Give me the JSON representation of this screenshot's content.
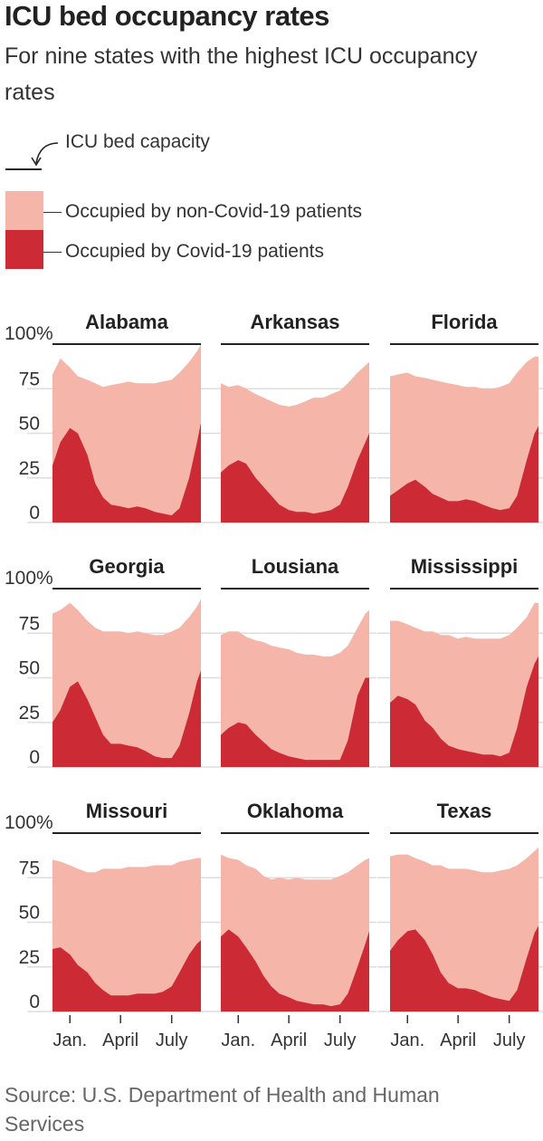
{
  "header": {
    "title": "ICU bed occupancy rates",
    "subtitle": "For nine states with the highest ICU occupancy rates"
  },
  "legend": {
    "capacity": "ICU bed capacity",
    "non_covid": "Occupied by non-Covid-19 patients",
    "covid": "Occupied by Covid-19 patients"
  },
  "colors": {
    "non_covid": "#f5b5a9",
    "covid": "#cc2b36",
    "capacity": "#222222",
    "grid": "#dddddd"
  },
  "source": "Source: U.S. Department of Health and Human Services",
  "chart_data": {
    "type": "area",
    "stacked": false,
    "layout": "small-multiples 3x3",
    "y_ticks": [
      "100%",
      "75",
      "50",
      "25",
      "0"
    ],
    "ylim": [
      0,
      100
    ],
    "x_ticks": [
      "Jan.",
      "April",
      "July"
    ],
    "grid": true,
    "x": [
      "2020-12-01",
      "2020-12-15",
      "2021-01-01",
      "2021-01-15",
      "2021-02-01",
      "2021-02-15",
      "2021-03-01",
      "2021-03-15",
      "2021-04-01",
      "2021-04-15",
      "2021-05-01",
      "2021-05-15",
      "2021-06-01",
      "2021-06-15",
      "2021-07-01",
      "2021-07-15",
      "2021-08-01",
      "2021-08-15",
      "2021-08-22"
    ],
    "panels": [
      {
        "state": "Alabama",
        "total": [
          83,
          92,
          87,
          82,
          80,
          78,
          76,
          77,
          78,
          79,
          78,
          78,
          78,
          79,
          80,
          84,
          90,
          96,
          100
        ],
        "covid": [
          32,
          45,
          53,
          50,
          38,
          22,
          14,
          10,
          9,
          8,
          9,
          8,
          6,
          5,
          4,
          8,
          25,
          45,
          56
        ]
      },
      {
        "state": "Arkansas",
        "total": [
          78,
          76,
          77,
          75,
          72,
          70,
          68,
          66,
          65,
          66,
          68,
          70,
          70,
          72,
          74,
          78,
          84,
          88,
          90
        ],
        "covid": [
          28,
          32,
          35,
          33,
          25,
          20,
          15,
          10,
          7,
          6,
          6,
          5,
          6,
          7,
          10,
          20,
          35,
          45,
          50
        ]
      },
      {
        "state": "Florida",
        "total": [
          82,
          83,
          84,
          82,
          81,
          80,
          79,
          78,
          77,
          76,
          76,
          75,
          75,
          76,
          78,
          84,
          90,
          93,
          93
        ],
        "covid": [
          15,
          18,
          22,
          24,
          20,
          16,
          14,
          12,
          12,
          13,
          12,
          10,
          8,
          7,
          8,
          15,
          35,
          50,
          54
        ]
      },
      {
        "state": "Georgia",
        "total": [
          86,
          88,
          92,
          88,
          82,
          78,
          76,
          76,
          76,
          75,
          76,
          75,
          74,
          74,
          76,
          78,
          84,
          90,
          94
        ],
        "covid": [
          25,
          32,
          45,
          48,
          38,
          28,
          18,
          13,
          13,
          12,
          11,
          9,
          6,
          5,
          5,
          12,
          30,
          48,
          54
        ]
      },
      {
        "state": "Lousiana",
        "total": [
          74,
          76,
          76,
          73,
          71,
          70,
          68,
          67,
          66,
          64,
          63,
          63,
          62,
          62,
          64,
          68,
          78,
          86,
          88
        ],
        "covid": [
          18,
          22,
          25,
          24,
          18,
          14,
          10,
          8,
          6,
          5,
          4,
          4,
          4,
          4,
          4,
          15,
          40,
          50,
          50
        ]
      },
      {
        "state": "Mississippi",
        "total": [
          82,
          82,
          80,
          78,
          76,
          76,
          74,
          74,
          72,
          73,
          72,
          72,
          72,
          72,
          74,
          78,
          84,
          92,
          92
        ],
        "covid": [
          36,
          40,
          38,
          35,
          26,
          22,
          16,
          12,
          10,
          9,
          8,
          7,
          7,
          6,
          8,
          22,
          45,
          58,
          62
        ]
      },
      {
        "state": "Missouri",
        "total": [
          85,
          84,
          82,
          80,
          78,
          78,
          80,
          80,
          80,
          81,
          81,
          81,
          82,
          82,
          82,
          84,
          85,
          86,
          86
        ],
        "covid": [
          35,
          36,
          32,
          26,
          22,
          16,
          12,
          9,
          9,
          9,
          10,
          10,
          10,
          11,
          14,
          22,
          32,
          38,
          40
        ]
      },
      {
        "state": "Oklahoma",
        "total": [
          88,
          86,
          85,
          82,
          80,
          76,
          74,
          75,
          74,
          75,
          74,
          74,
          74,
          74,
          76,
          78,
          82,
          85,
          86
        ],
        "covid": [
          42,
          46,
          42,
          36,
          28,
          20,
          14,
          10,
          8,
          6,
          5,
          4,
          4,
          3,
          4,
          10,
          25,
          38,
          45
        ]
      },
      {
        "state": "Texas",
        "total": [
          87,
          88,
          88,
          86,
          84,
          82,
          82,
          80,
          80,
          80,
          79,
          78,
          78,
          79,
          80,
          82,
          86,
          90,
          92
        ],
        "covid": [
          34,
          40,
          45,
          46,
          40,
          32,
          22,
          16,
          13,
          13,
          12,
          10,
          8,
          7,
          6,
          12,
          30,
          44,
          48
        ]
      }
    ]
  }
}
